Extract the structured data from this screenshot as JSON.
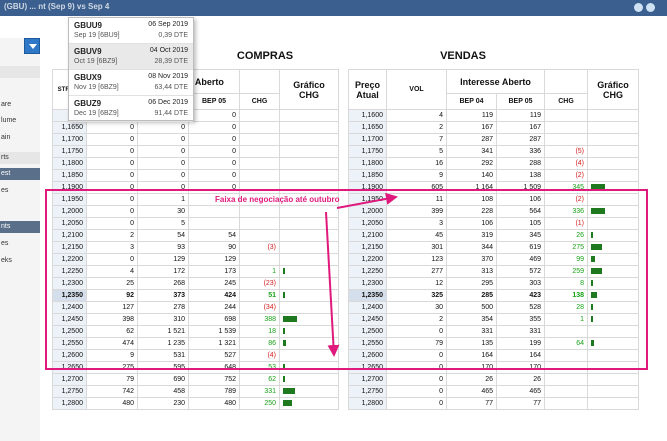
{
  "header": {
    "title": "(GBU) ... nt (Sep 9) vs Sep 4"
  },
  "sidebar": {
    "items": [
      "are",
      "lume",
      "ain",
      "rts",
      "est",
      "es",
      "nts",
      "es",
      "eks"
    ]
  },
  "contracts_dropdown": [
    {
      "name": "GBUU9",
      "date": "06 Sep 2019",
      "sub": "Sep 19 [6BU9]",
      "dte": "0,39 DTE"
    },
    {
      "name": "GBUV9",
      "date": "04 Oct 2019",
      "sub": "Oct 19 [6BZ9]",
      "dte": "28,39 DTE"
    },
    {
      "name": "GBUX9",
      "date": "08 Nov 2019",
      "sub": "Nov 19 [6BZ9]",
      "dte": "63,44 DTE"
    },
    {
      "name": "GBUZ9",
      "date": "06 Dec 2019",
      "sub": "Dec 19 [6BZ9]",
      "dte": "91,44 DTE"
    }
  ],
  "compras": {
    "title": "COMPRAS",
    "headers": {
      "strike": "STR PRI",
      "vol": "",
      "interest": "Interesse Aberto",
      "bep": "BEP 05",
      "chg": "CHG",
      "graph": "Gráfico CHG"
    },
    "rows": [
      [
        "1,16",
        "",
        "0",
        "0",
        "",
        0
      ],
      [
        "1,1650",
        "0",
        "0",
        "0",
        "",
        0
      ],
      [
        "1,1700",
        "0",
        "0",
        "0",
        "",
        0
      ],
      [
        "1,1750",
        "0",
        "0",
        "0",
        "",
        0
      ],
      [
        "1,1800",
        "0",
        "0",
        "0",
        "",
        0
      ],
      [
        "1,1850",
        "0",
        "0",
        "0",
        "",
        0
      ],
      [
        "1,1900",
        "0",
        "0",
        "0",
        "",
        0
      ],
      [
        "1,1950",
        "0",
        "1",
        "",
        "",
        0
      ],
      [
        "1,2000",
        "0",
        "30",
        "",
        "",
        0
      ],
      [
        "1,2050",
        "0",
        "5",
        "",
        "",
        0
      ],
      [
        "1,2100",
        "2",
        "54",
        "54",
        "",
        0
      ],
      [
        "1,2150",
        "3",
        "93",
        "90",
        "(3)",
        0
      ],
      [
        "1,2200",
        "0",
        "129",
        "129",
        "",
        0
      ],
      [
        "1,2250",
        "4",
        "172",
        "173",
        "1",
        1
      ],
      [
        "1,2300",
        "25",
        "268",
        "245",
        "(23)",
        0
      ],
      [
        "1,2350",
        "92",
        "373",
        "424",
        "51",
        51
      ],
      [
        "1,2400",
        "127",
        "278",
        "244",
        "(34)",
        0
      ],
      [
        "1,2450",
        "398",
        "310",
        "698",
        "388",
        388
      ],
      [
        "1,2500",
        "62",
        "1 521",
        "1 539",
        "18",
        18
      ],
      [
        "1,2550",
        "474",
        "1 235",
        "1 321",
        "86",
        86
      ],
      [
        "1,2600",
        "9",
        "531",
        "527",
        "(4)",
        0
      ],
      [
        "1,2650",
        "275",
        "595",
        "648",
        "53",
        53
      ],
      [
        "1,2700",
        "79",
        "690",
        "752",
        "62",
        62
      ],
      [
        "1,2750",
        "742",
        "458",
        "789",
        "331",
        331
      ],
      [
        "1,2800",
        "480",
        "230",
        "480",
        "250",
        250
      ]
    ]
  },
  "vendas": {
    "title": "VENDAS",
    "headers": {
      "price": "Preço Atual",
      "vol": "VOL",
      "interest": "Interesse Aberto",
      "bep04": "BEP 04",
      "bep05": "BEP 05",
      "chg": "CHG",
      "graph": "Gráfico CHG"
    },
    "rows": [
      [
        "1,1600",
        "4",
        "119",
        "119",
        "",
        0
      ],
      [
        "1,1650",
        "2",
        "167",
        "167",
        "",
        0
      ],
      [
        "1,1700",
        "7",
        "287",
        "287",
        "",
        0
      ],
      [
        "1,1750",
        "5",
        "341",
        "336",
        "(5)",
        0
      ],
      [
        "1,1800",
        "16",
        "292",
        "288",
        "(4)",
        0
      ],
      [
        "1,1850",
        "9",
        "140",
        "138",
        "(2)",
        0
      ],
      [
        "1,1900",
        "605",
        "1 164",
        "1 509",
        "345",
        345
      ],
      [
        "1,1950",
        "11",
        "108",
        "106",
        "(2)",
        0
      ],
      [
        "1,2000",
        "399",
        "228",
        "564",
        "336",
        336
      ],
      [
        "1,2050",
        "3",
        "106",
        "105",
        "(1)",
        0
      ],
      [
        "1,2100",
        "45",
        "319",
        "345",
        "26",
        26
      ],
      [
        "1,2150",
        "301",
        "344",
        "619",
        "275",
        275
      ],
      [
        "1,2200",
        "123",
        "370",
        "469",
        "99",
        99
      ],
      [
        "1,2250",
        "277",
        "313",
        "572",
        "259",
        259
      ],
      [
        "1,2300",
        "12",
        "295",
        "303",
        "8",
        8
      ],
      [
        "1,2350",
        "325",
        "285",
        "423",
        "138",
        138
      ],
      [
        "1,2400",
        "30",
        "500",
        "528",
        "28",
        28
      ],
      [
        "1,2450",
        "2",
        "354",
        "355",
        "1",
        1
      ],
      [
        "1,2500",
        "0",
        "331",
        "331",
        "",
        0
      ],
      [
        "1,2550",
        "79",
        "135",
        "199",
        "64",
        64
      ],
      [
        "1,2600",
        "0",
        "164",
        "164",
        "",
        0
      ],
      [
        "1,2650",
        "0",
        "170",
        "170",
        "",
        0
      ],
      [
        "1,2700",
        "0",
        "26",
        "26",
        "",
        0
      ],
      [
        "1,2750",
        "0",
        "465",
        "465",
        "",
        0
      ],
      [
        "1,2800",
        "0",
        "77",
        "77",
        "",
        0
      ]
    ]
  },
  "annotation": {
    "text": "Faixa de negociação até outubro"
  },
  "colors": {
    "highlight": "#e0197d",
    "positive": "#16a116",
    "negative": "#d32020",
    "bar": "#1f7a1f"
  }
}
